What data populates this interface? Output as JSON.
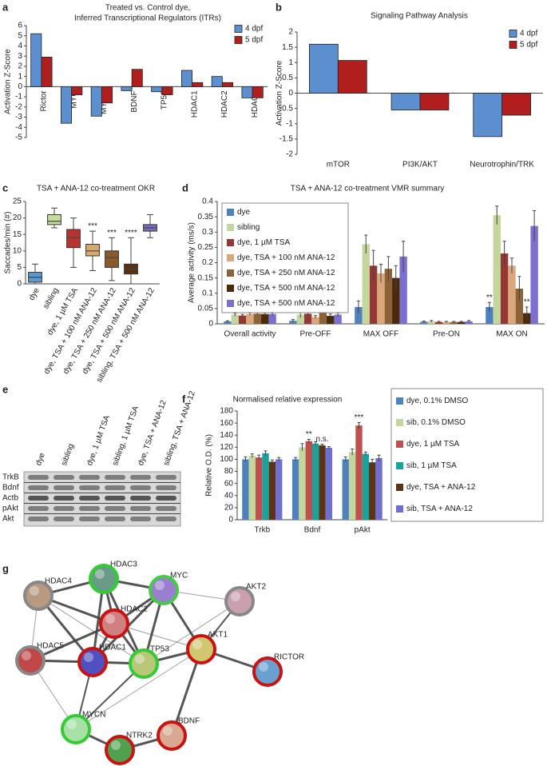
{
  "chart_data": [
    {
      "panel": "a",
      "type": "bar",
      "title": [
        "Treated vs. Control dye,",
        "Inferred Transcriptional Regulators (ITRs)"
      ],
      "ylabel": "Activation Z-Score",
      "categories": [
        "Rictor",
        "MYC",
        "MYCN",
        "BDNF",
        "TP53",
        "HDAC1",
        "HDAC2",
        "HDAC3"
      ],
      "series": [
        {
          "name": "4 dpf",
          "color": "#5b8fd0",
          "values": [
            5.2,
            -3.6,
            -2.9,
            -0.4,
            -0.5,
            1.6,
            1.0,
            -1.1
          ]
        },
        {
          "name": "5 dpf",
          "color": "#b01e1e",
          "values": [
            2.9,
            -0.8,
            -1.6,
            1.7,
            -0.8,
            0.4,
            0.4,
            -1.1
          ]
        }
      ],
      "ylim": [
        -5,
        6
      ],
      "yticks": [
        -5,
        -4,
        -3,
        -2,
        -1,
        0,
        1,
        2,
        3,
        4,
        5,
        6
      ],
      "legend": "upper right"
    },
    {
      "panel": "b",
      "type": "bar",
      "title": "Signaling Pathway Analysis",
      "ylabel": "Activation Z-Score",
      "categories": [
        "mTOR",
        "PI3K/AKT",
        "Neurotrophin/TRK"
      ],
      "series": [
        {
          "name": "4 dpf",
          "color": "#5b8fd0",
          "values": [
            1.6,
            -0.55,
            -1.42
          ]
        },
        {
          "name": "5 dpf",
          "color": "#b01e1e",
          "values": [
            1.07,
            -0.55,
            -0.72
          ]
        }
      ],
      "ylim": [
        -2,
        2
      ],
      "yticks": [
        -2,
        -1.5,
        -1,
        -0.5,
        0,
        0.5,
        1,
        1.5,
        2
      ],
      "legend": "upper right"
    },
    {
      "panel": "c",
      "type": "box",
      "title": "TSA + ANA-12 co-treatment OKR",
      "ylabel": "Saccades/min (#)",
      "categories": [
        "dye",
        "sibling",
        "dye, 1 µM TSA",
        "dye, TSA + 100 nM ANA-12",
        "dye, TSA + 250 nM ANA-12",
        "dye, TSA + 500 nM ANA-12",
        "sibling, TSA + 500 nM ANA-12"
      ],
      "colors": [
        "#5b9bd5",
        "#c4dd9b",
        "#b83232",
        "#d9a86c",
        "#8b5a2b",
        "#5a3010",
        "#7b68c8"
      ],
      "stats": [
        {
          "min": 0,
          "q1": 0.5,
          "median": 2,
          "q3": 3.5,
          "max": 6
        },
        {
          "min": 17,
          "q1": 18,
          "median": 19,
          "q3": 21,
          "max": 23
        },
        {
          "min": 5,
          "q1": 11,
          "median": 14,
          "q3": 16.5,
          "max": 20
        },
        {
          "min": 4,
          "q1": 8.5,
          "median": 10,
          "q3": 12,
          "max": 16
        },
        {
          "min": 1,
          "q1": 5,
          "median": 8,
          "q3": 10,
          "max": 14
        },
        {
          "min": 0,
          "q1": 3,
          "median": 4.5,
          "q3": 6,
          "max": 14
        },
        {
          "min": 14,
          "q1": 16,
          "median": 17,
          "q3": 18,
          "max": 21
        }
      ],
      "annotations": [
        {
          "text": "***",
          "category": 3
        },
        {
          "text": "***",
          "category": 4
        },
        {
          "text": "****",
          "category": 5
        }
      ],
      "ylim": [
        0,
        25
      ],
      "yticks": [
        0,
        5,
        10,
        15,
        20,
        25
      ]
    },
    {
      "panel": "d",
      "type": "bar",
      "title": "TSA + ANA-12 co-treatment VMR summary",
      "ylabel": "Average activity (ms/s)",
      "categories": [
        "Overall activity",
        "Pre-OFF",
        "MAX OFF",
        "Pre-ON",
        "MAX ON"
      ],
      "series": [
        {
          "name": "dye",
          "color": "#4f81bd",
          "values": [
            0.008,
            0.01,
            0.055,
            0.007,
            0.055
          ],
          "errors": [
            0.002,
            0.004,
            0.02,
            0.002,
            0.015
          ]
        },
        {
          "name": "sibling",
          "color": "#c3d69b",
          "values": [
            0.03,
            0.03,
            0.26,
            0.008,
            0.355
          ],
          "errors": [
            0.005,
            0.01,
            0.03,
            0.003,
            0.03
          ]
        },
        {
          "name": "dye, 1 µM TSA",
          "color": "#953735",
          "values": [
            0.027,
            0.033,
            0.19,
            0.006,
            0.23
          ],
          "errors": [
            0.004,
            0.008,
            0.05,
            0.002,
            0.04
          ]
        },
        {
          "name": "dye, TSA + 100 nM ANA-12",
          "color": "#d9a77a",
          "values": [
            0.032,
            0.022,
            0.165,
            0.006,
            0.19
          ],
          "errors": [
            0.004,
            0.005,
            0.03,
            0.002,
            0.025
          ]
        },
        {
          "name": "dye, TSA + 250 nM ANA-12",
          "color": "#8c6239",
          "values": [
            0.033,
            0.043,
            0.18,
            0.006,
            0.115
          ],
          "errors": [
            0.004,
            0.008,
            0.04,
            0.002,
            0.04
          ]
        },
        {
          "name": "dye, TSA + 500 nM ANA-12",
          "color": "#4a2a0a",
          "values": [
            0.032,
            0.026,
            0.15,
            0.006,
            0.035
          ],
          "errors": [
            0.004,
            0.006,
            0.04,
            0.002,
            0.02
          ]
        },
        {
          "name": "dye, TSA + 500 nM ANA-12",
          "color": "#7b6fd0",
          "values": [
            0.032,
            0.03,
            0.22,
            0.008,
            0.32
          ],
          "errors": [
            0.004,
            0.006,
            0.05,
            0.003,
            0.05
          ]
        }
      ],
      "annotations": [
        {
          "text": "**",
          "series": 0,
          "category": 4
        },
        {
          "text": "**",
          "series": 5,
          "category": 4
        }
      ],
      "ylim": [
        0,
        0.4
      ],
      "yticks": [
        0,
        0.05,
        0.1,
        0.15,
        0.2,
        0.25,
        0.3,
        0.35,
        0.4
      ],
      "legend": "upper left"
    },
    {
      "panel": "f",
      "type": "bar",
      "title": "Normalised relative expression",
      "ylabel": "Relative O.D. (%)",
      "categories": [
        "Trkb",
        "Bdnf",
        "pAkt"
      ],
      "series": [
        {
          "name": "dye, 0.1% DMSO",
          "color": "#4f81bd",
          "values": [
            100,
            100,
            100
          ],
          "errors": [
            4,
            3,
            4
          ]
        },
        {
          "name": "sib, 0.1% DMSO",
          "color": "#c3d69b",
          "values": [
            106,
            120,
            112
          ],
          "errors": [
            3,
            6,
            5
          ]
        },
        {
          "name": "dye, 1 µM TSA",
          "color": "#c0504d",
          "values": [
            103,
            130,
            156
          ],
          "errors": [
            4,
            3,
            5
          ]
        },
        {
          "name": "sib, 1 µM TSA",
          "color": "#1aa39a",
          "values": [
            110,
            126,
            109
          ],
          "errors": [
            4,
            3,
            3
          ]
        },
        {
          "name": "dye, TSA + ANA-12",
          "color": "#5c3317",
          "values": [
            96,
            123,
            95
          ],
          "errors": [
            3,
            2,
            5
          ]
        },
        {
          "name": "sib, TSA + ANA-12",
          "color": "#6f6fcf",
          "values": [
            100,
            119,
            102
          ],
          "errors": [
            3,
            2,
            5
          ]
        }
      ],
      "annotations": [
        {
          "text": "**",
          "series": 2,
          "category": 1
        },
        {
          "text": "n.s.",
          "series": 4,
          "category": 1
        },
        {
          "text": "***",
          "series": 2,
          "category": 2
        }
      ],
      "ylim": [
        0,
        180
      ],
      "yticks": [
        0,
        20,
        40,
        60,
        80,
        100,
        120,
        140,
        160,
        180
      ],
      "legend": "right"
    }
  ],
  "blot": {
    "panel": "e",
    "lanes": [
      "dye",
      "sibling",
      "dye, 1 µM TSA",
      "sibling, 1 µM TSA",
      "dye, TSA + ANA-12",
      "sibling, TSA + ANA-12"
    ],
    "rows": [
      "TrkB",
      "Bdnf",
      "Actb",
      "pAkt",
      "Akt"
    ]
  },
  "network": {
    "panel": "g",
    "nodes": [
      "HDAC4",
      "HDAC3",
      "MYC",
      "AKT2",
      "HDAC2",
      "HDAC5",
      "HDAC1",
      "TP53",
      "AKT1",
      "RICTOR",
      "MYCN",
      "NTRK2",
      "BDNF"
    ]
  }
}
